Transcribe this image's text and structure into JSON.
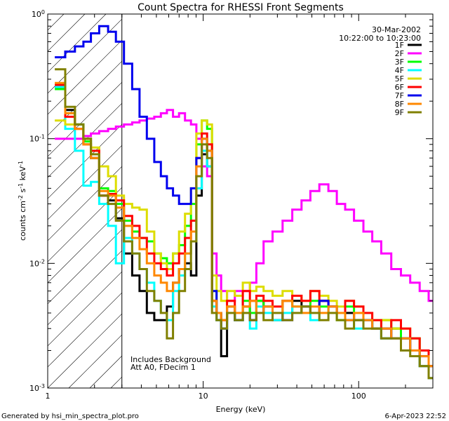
{
  "chart_data": {
    "type": "line",
    "step": true,
    "title": "Count Spectra for RHESSI Front Segments",
    "xlabel": "Energy (keV)",
    "ylabel": "counts cm^-2 s^-1 keV^-1",
    "xscale": "log",
    "yscale": "log",
    "xlim": [
      1,
      300
    ],
    "ylim": [
      0.001,
      1
    ],
    "xticks": [
      {
        "v": 1,
        "label": "1"
      },
      {
        "v": 10,
        "label": "10"
      },
      {
        "v": 100,
        "label": "100"
      }
    ],
    "yticks": [
      {
        "v": 1,
        "label": "10",
        "exp": "0"
      },
      {
        "v": 0.1,
        "label": "10",
        "exp": "-1"
      },
      {
        "v": 0.01,
        "label": "10",
        "exp": "-2"
      },
      {
        "v": 0.001,
        "label": "10",
        "exp": "-3"
      }
    ],
    "date": "30-Mar-2002",
    "time_range": "10:22:00 to 10:23:00",
    "annotations": [
      "Includes Background",
      "Att A0, FDecim 1"
    ],
    "attenuated_below_keV": 3,
    "series": [
      {
        "name": "1F",
        "color": "#000000",
        "x": [
          1.2,
          1.4,
          1.6,
          1.8,
          2.0,
          2.3,
          2.6,
          2.9,
          3.3,
          3.7,
          4.1,
          4.6,
          5.1,
          5.6,
          6.1,
          6.7,
          7.3,
          8.0,
          8.7,
          9.4,
          10.2,
          11.0,
          11.8,
          12.6,
          13.5,
          15,
          17,
          19,
          21,
          23,
          26,
          30,
          35,
          40,
          46,
          52,
          60,
          68,
          77,
          87,
          100,
          115,
          130,
          150,
          175,
          200,
          230,
          265,
          300
        ],
        "values": [
          0.26,
          0.17,
          0.13,
          0.1,
          0.07,
          0.035,
          0.032,
          0.023,
          0.012,
          0.008,
          0.006,
          0.004,
          0.0035,
          0.0035,
          0.0045,
          0.007,
          0.009,
          0.01,
          0.008,
          0.035,
          0.075,
          0.06,
          0.005,
          0.0035,
          0.0018,
          0.0045,
          0.0035,
          0.0045,
          0.0035,
          0.005,
          0.004,
          0.0035,
          0.004,
          0.005,
          0.0045,
          0.004,
          0.005,
          0.0045,
          0.004,
          0.004,
          0.0035,
          0.0035,
          0.003,
          0.0025,
          0.003,
          0.0025,
          0.002,
          0.0015,
          0.0012
        ]
      },
      {
        "name": "2F",
        "color": "#ff00ff",
        "x": [
          1.2,
          1.4,
          1.6,
          1.8,
          2.0,
          2.3,
          2.6,
          2.9,
          3.3,
          3.7,
          4.1,
          4.6,
          5.1,
          5.6,
          6.1,
          6.7,
          7.3,
          8.0,
          8.7,
          9.4,
          10.2,
          11.0,
          11.8,
          12.6,
          13.5,
          15,
          17,
          19,
          21,
          23,
          26,
          30,
          35,
          40,
          46,
          52,
          60,
          68,
          77,
          87,
          100,
          115,
          130,
          150,
          175,
          200,
          230,
          265,
          300
        ],
        "values": [
          0.1,
          0.1,
          0.1,
          0.105,
          0.11,
          0.115,
          0.12,
          0.125,
          0.13,
          0.135,
          0.14,
          0.145,
          0.15,
          0.16,
          0.17,
          0.15,
          0.16,
          0.14,
          0.13,
          0.1,
          0.06,
          0.05,
          0.012,
          0.008,
          0.006,
          0.005,
          0.006,
          0.006,
          0.007,
          0.01,
          0.015,
          0.018,
          0.022,
          0.027,
          0.032,
          0.038,
          0.043,
          0.038,
          0.03,
          0.027,
          0.022,
          0.018,
          0.015,
          0.012,
          0.009,
          0.008,
          0.007,
          0.006,
          0.005
        ]
      },
      {
        "name": "3F",
        "color": "#00ff00",
        "x": [
          1.2,
          1.4,
          1.6,
          1.8,
          2.0,
          2.3,
          2.6,
          2.9,
          3.3,
          3.7,
          4.1,
          4.6,
          5.1,
          5.6,
          6.1,
          6.7,
          7.3,
          8.0,
          8.7,
          9.4,
          10.2,
          11.0,
          11.8,
          12.6,
          13.5,
          15,
          17,
          19,
          21,
          23,
          26,
          30,
          35,
          40,
          46,
          52,
          60,
          68,
          77,
          87,
          100,
          115,
          130,
          150,
          175,
          200,
          230,
          265,
          300
        ],
        "values": [
          0.25,
          0.16,
          0.13,
          0.095,
          0.08,
          0.04,
          0.038,
          0.03,
          0.022,
          0.018,
          0.016,
          0.015,
          0.012,
          0.011,
          0.01,
          0.012,
          0.014,
          0.02,
          0.03,
          0.09,
          0.14,
          0.12,
          0.006,
          0.004,
          0.0035,
          0.004,
          0.0035,
          0.005,
          0.004,
          0.005,
          0.0045,
          0.004,
          0.005,
          0.0045,
          0.004,
          0.005,
          0.0045,
          0.004,
          0.0035,
          0.0045,
          0.004,
          0.0035,
          0.003,
          0.0035,
          0.003,
          0.0025,
          0.0025,
          0.002,
          0.0015
        ]
      },
      {
        "name": "4F",
        "color": "#00ffff",
        "x": [
          1.2,
          1.4,
          1.6,
          1.8,
          2.0,
          2.3,
          2.6,
          2.9,
          3.3,
          3.7,
          4.1,
          4.6,
          5.1,
          5.6,
          6.1,
          6.7,
          7.3,
          8.0,
          8.7,
          9.4,
          10.2,
          11.0,
          11.8,
          12.6,
          13.5,
          15,
          17,
          19,
          21,
          23,
          26,
          30,
          35,
          40,
          46,
          52,
          60,
          68,
          77,
          87,
          100,
          115,
          130,
          150,
          175,
          200,
          230,
          265,
          300
        ],
        "values": [
          0.26,
          0.12,
          0.08,
          0.042,
          0.045,
          0.03,
          0.02,
          0.01,
          0.016,
          0.012,
          0.009,
          0.007,
          0.005,
          0.004,
          0.0035,
          0.006,
          0.008,
          0.012,
          0.015,
          0.04,
          0.08,
          0.06,
          0.0045,
          0.0035,
          0.003,
          0.004,
          0.0035,
          0.004,
          0.003,
          0.0045,
          0.004,
          0.0035,
          0.004,
          0.0045,
          0.004,
          0.0035,
          0.004,
          0.0045,
          0.004,
          0.0035,
          0.003,
          0.0035,
          0.003,
          0.0025,
          0.0025,
          0.002,
          0.002,
          0.0015,
          0.0012
        ]
      },
      {
        "name": "5F",
        "color": "#dddd00",
        "x": [
          1.2,
          1.4,
          1.6,
          1.8,
          2.0,
          2.3,
          2.6,
          2.9,
          3.3,
          3.7,
          4.1,
          4.6,
          5.1,
          5.6,
          6.1,
          6.7,
          7.3,
          8.0,
          8.7,
          9.4,
          10.2,
          11.0,
          11.8,
          12.6,
          13.5,
          15,
          17,
          19,
          21,
          23,
          26,
          30,
          35,
          40,
          46,
          52,
          60,
          68,
          77,
          87,
          100,
          115,
          130,
          150,
          175,
          200,
          230,
          265,
          300
        ],
        "values": [
          0.14,
          0.13,
          0.12,
          0.1,
          0.085,
          0.06,
          0.05,
          0.035,
          0.03,
          0.028,
          0.027,
          0.018,
          0.012,
          0.01,
          0.009,
          0.012,
          0.018,
          0.025,
          0.04,
          0.11,
          0.14,
          0.13,
          0.008,
          0.006,
          0.005,
          0.006,
          0.0055,
          0.007,
          0.006,
          0.0065,
          0.006,
          0.0055,
          0.006,
          0.0055,
          0.005,
          0.006,
          0.0055,
          0.005,
          0.0045,
          0.005,
          0.0045,
          0.004,
          0.0035,
          0.0035,
          0.003,
          0.003,
          0.0025,
          0.002,
          0.0015
        ]
      },
      {
        "name": "6F",
        "color": "#ff0000",
        "x": [
          1.2,
          1.4,
          1.6,
          1.8,
          2.0,
          2.3,
          2.6,
          2.9,
          3.3,
          3.7,
          4.1,
          4.6,
          5.1,
          5.6,
          6.1,
          6.7,
          7.3,
          8.0,
          8.7,
          9.4,
          10.2,
          11.0,
          11.8,
          12.6,
          13.5,
          15,
          17,
          19,
          21,
          23,
          26,
          30,
          35,
          40,
          46,
          52,
          60,
          68,
          77,
          87,
          100,
          115,
          130,
          150,
          175,
          200,
          230,
          265,
          300
        ],
        "values": [
          0.27,
          0.15,
          0.12,
          0.09,
          0.08,
          0.035,
          0.036,
          0.032,
          0.024,
          0.02,
          0.016,
          0.012,
          0.01,
          0.009,
          0.008,
          0.01,
          0.012,
          0.016,
          0.022,
          0.07,
          0.11,
          0.09,
          0.005,
          0.004,
          0.0035,
          0.005,
          0.004,
          0.006,
          0.005,
          0.0055,
          0.005,
          0.0045,
          0.005,
          0.0055,
          0.005,
          0.006,
          0.005,
          0.0045,
          0.004,
          0.005,
          0.0045,
          0.004,
          0.0035,
          0.003,
          0.0035,
          0.003,
          0.0025,
          0.002,
          0.0015
        ]
      },
      {
        "name": "7F",
        "color": "#0000ee",
        "x": [
          1.2,
          1.4,
          1.6,
          1.8,
          2.0,
          2.3,
          2.6,
          2.9,
          3.3,
          3.7,
          4.1,
          4.6,
          5.1,
          5.6,
          6.1,
          6.7,
          7.3,
          8.0,
          8.7,
          9.4,
          10.2,
          11.0,
          11.8,
          12.6,
          13.5,
          15,
          17,
          19,
          21,
          23,
          26,
          30,
          35,
          40,
          46,
          52,
          60,
          68,
          77,
          87,
          100,
          115,
          130,
          150,
          175,
          200,
          230,
          265,
          300
        ],
        "values": [
          0.45,
          0.5,
          0.55,
          0.6,
          0.7,
          0.8,
          0.72,
          0.6,
          0.4,
          0.25,
          0.15,
          0.1,
          0.065,
          0.05,
          0.04,
          0.035,
          0.03,
          0.03,
          0.04,
          0.07,
          0.1,
          0.08,
          0.006,
          0.004,
          0.003,
          0.004,
          0.0035,
          0.004,
          0.0035,
          0.004,
          0.0045,
          0.004,
          0.0035,
          0.004,
          0.0045,
          0.004,
          0.005,
          0.0045,
          0.004,
          0.0035,
          0.004,
          0.0035,
          0.003,
          0.003,
          0.0025,
          0.0025,
          0.002,
          0.0018,
          0.0015
        ]
      },
      {
        "name": "8F",
        "color": "#ff8800",
        "x": [
          1.2,
          1.4,
          1.6,
          1.8,
          2.0,
          2.3,
          2.6,
          2.9,
          3.3,
          3.7,
          4.1,
          4.6,
          5.1,
          5.6,
          6.1,
          6.7,
          7.3,
          8.0,
          8.7,
          9.4,
          10.2,
          11.0,
          11.8,
          12.6,
          13.5,
          15,
          17,
          19,
          21,
          23,
          26,
          30,
          35,
          40,
          46,
          52,
          60,
          68,
          77,
          87,
          100,
          115,
          130,
          150,
          175,
          200,
          230,
          265,
          300
        ],
        "values": [
          0.28,
          0.16,
          0.12,
          0.09,
          0.07,
          0.038,
          0.035,
          0.028,
          0.02,
          0.016,
          0.013,
          0.01,
          0.008,
          0.007,
          0.006,
          0.007,
          0.009,
          0.012,
          0.018,
          0.06,
          0.1,
          0.08,
          0.005,
          0.004,
          0.0035,
          0.0045,
          0.004,
          0.0045,
          0.005,
          0.004,
          0.0045,
          0.004,
          0.005,
          0.0045,
          0.004,
          0.0045,
          0.004,
          0.0045,
          0.004,
          0.0035,
          0.004,
          0.0035,
          0.003,
          0.003,
          0.0025,
          0.0025,
          0.002,
          0.0018,
          0.0015
        ]
      },
      {
        "name": "9F",
        "color": "#808000",
        "x": [
          1.2,
          1.4,
          1.6,
          1.8,
          2.0,
          2.3,
          2.6,
          2.9,
          3.3,
          3.7,
          4.1,
          4.6,
          5.1,
          5.6,
          6.1,
          6.7,
          7.3,
          8.0,
          8.7,
          9.4,
          10.2,
          11.0,
          11.8,
          12.6,
          13.5,
          15,
          17,
          19,
          21,
          23,
          26,
          30,
          35,
          40,
          46,
          52,
          60,
          68,
          77,
          87,
          100,
          115,
          130,
          150,
          175,
          200,
          230,
          265,
          300
        ],
        "values": [
          0.36,
          0.18,
          0.13,
          0.1,
          0.075,
          0.035,
          0.03,
          0.022,
          0.015,
          0.012,
          0.009,
          0.006,
          0.005,
          0.004,
          0.0025,
          0.004,
          0.006,
          0.009,
          0.015,
          0.05,
          0.09,
          0.07,
          0.004,
          0.0035,
          0.003,
          0.004,
          0.0035,
          0.004,
          0.0035,
          0.004,
          0.0035,
          0.004,
          0.0035,
          0.004,
          0.0045,
          0.004,
          0.0035,
          0.004,
          0.0035,
          0.003,
          0.0035,
          0.003,
          0.003,
          0.0025,
          0.0025,
          0.002,
          0.0018,
          0.0015,
          0.0012
        ]
      }
    ]
  },
  "footer": {
    "generated_by": "Generated by hsi_min_spectra_plot.pro",
    "timestamp": "6-Apr-2023 22:52"
  }
}
